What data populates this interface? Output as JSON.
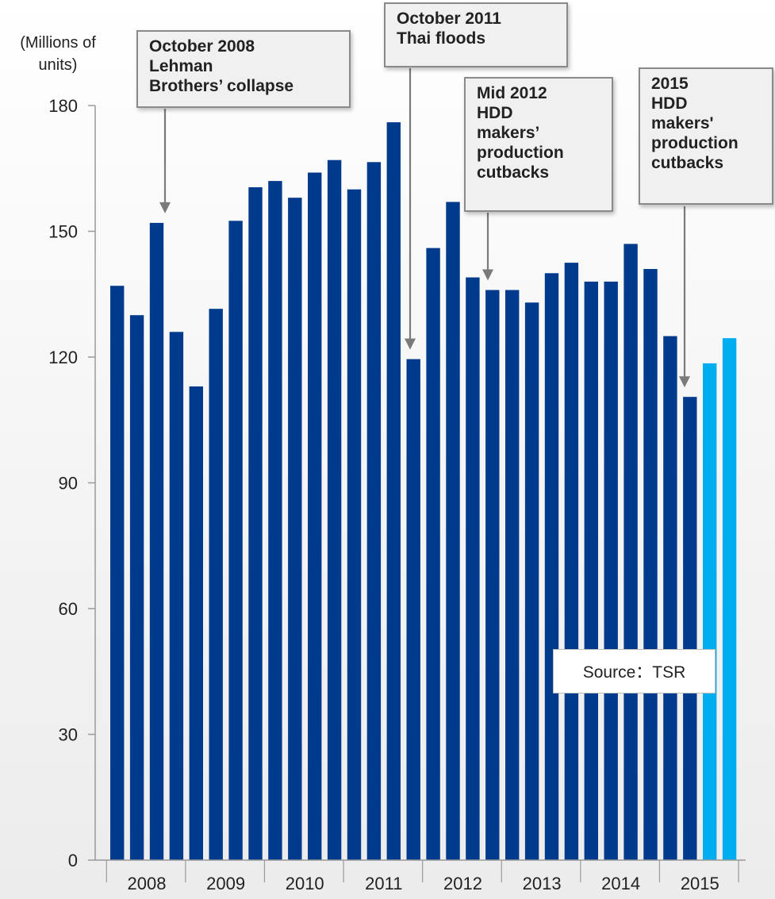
{
  "chart_data": {
    "type": "bar",
    "unit_label": "(Millions of\nunits)",
    "ylim": [
      0,
      180
    ],
    "yticks": [
      0,
      30,
      60,
      90,
      120,
      150,
      180
    ],
    "years": [
      "2008",
      "2009",
      "2010",
      "2011",
      "2012",
      "2013",
      "2014",
      "2015"
    ],
    "series": [
      {
        "values": [
          137,
          130,
          152,
          126,
          113,
          131.5,
          152.5,
          160.5,
          162,
          158,
          164,
          167,
          160,
          166.5,
          176,
          119.5,
          146,
          157,
          139,
          136,
          136,
          133,
          140,
          142.5,
          138,
          138,
          147,
          141,
          125,
          110.5
        ],
        "color": "#003a8c"
      },
      {
        "values": [
          118.5,
          124.5
        ],
        "color": "#00aeef"
      }
    ],
    "annotations": [
      {
        "text": "October 2008\nLehman\nBrothers’ collapse"
      },
      {
        "text": "October 2011\nThai floods"
      },
      {
        "text": "Mid 2012\nHDD\nmakers’\nproduction\ncutbacks"
      },
      {
        "text": "2015\nHDD\nmakers'\nproduction\ncutbacks"
      }
    ],
    "source": "Source：TSR"
  }
}
